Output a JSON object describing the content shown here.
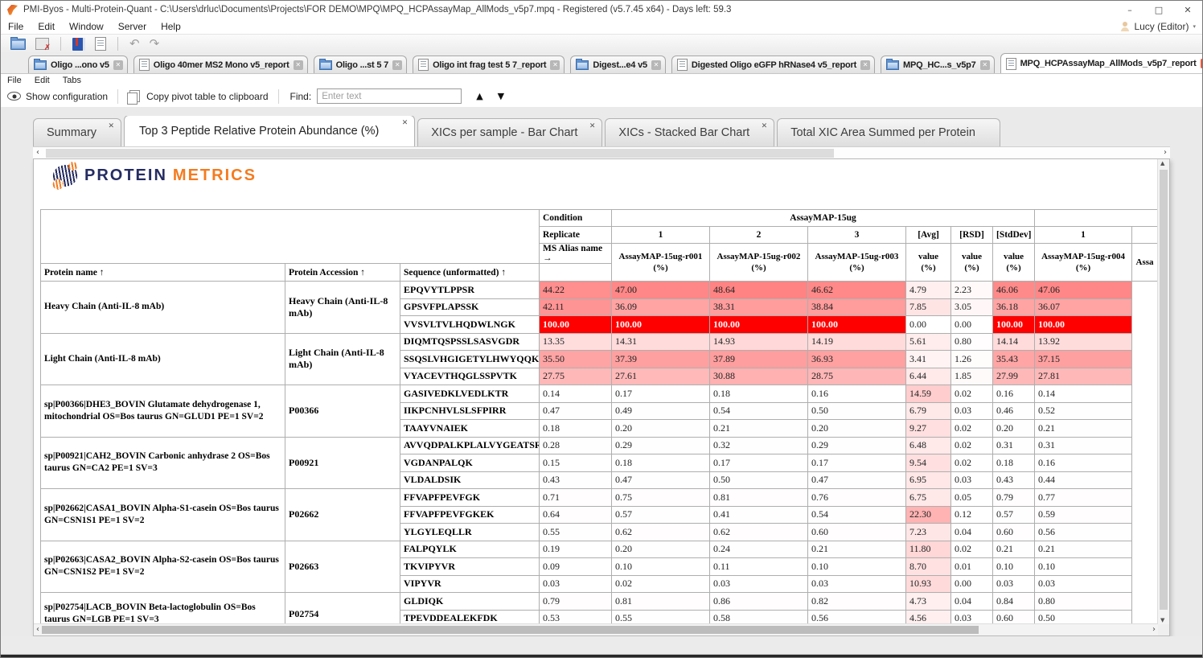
{
  "window": {
    "title": "PMI-Byos - Multi-Protein-Quant - C:\\Users\\drluc\\Documents\\Projects\\FOR DEMO\\MPQ\\MPQ_HCPAssayMap_AllMods_v5p7.mpq - Registered (v5.7.45 x64) - Days left: 59.3",
    "controls": {
      "minimize": "–",
      "maximize": "□",
      "close": "✕"
    }
  },
  "glyphs": {
    "close": "✕",
    "up": "▲",
    "down": "▼",
    "nav_left": "◄",
    "nav_right": "►",
    "chev_left": "‹",
    "chev_right": "›",
    "undo": "↶",
    "redo": "↷",
    "caret": "▾",
    "vs_up": "▲",
    "vs_down": "▼"
  },
  "menu_bar": {
    "items": [
      "File",
      "Edit",
      "Window",
      "Server",
      "Help"
    ],
    "user_label": "Lucy (Editor)"
  },
  "report_menu": {
    "items": [
      "File",
      "Edit",
      "Tabs"
    ]
  },
  "report_toolbar": {
    "show_configuration": "Show configuration",
    "copy_pivot": "Copy pivot table to clipboard",
    "find_label": "Find:",
    "find_placeholder": "Enter text",
    "find_value": ""
  },
  "document_tabs": [
    {
      "label": "Oligo ...ono v5",
      "icon": "folder",
      "active": false
    },
    {
      "label": "Oligo 40mer MS2 Mono v5_report",
      "icon": "report",
      "active": false
    },
    {
      "label": "Oligo ...st 5 7",
      "icon": "folder",
      "active": false
    },
    {
      "label": "Oligo int frag test 5 7_report",
      "icon": "report",
      "active": false
    },
    {
      "label": "Digest...e4 v5",
      "icon": "folder",
      "active": false
    },
    {
      "label": "Digested Oligo eGFP hRNase4 v5_report",
      "icon": "report",
      "active": false
    },
    {
      "label": "MPQ_HC...s_v5p7",
      "icon": "folder",
      "active": false
    },
    {
      "label": "MPQ_HCPAssayMap_AllMods_v5p7_report",
      "icon": "report",
      "active": true
    }
  ],
  "view_tabs": [
    {
      "label": "Summary",
      "closable": true,
      "active": false
    },
    {
      "label": "Top 3 Peptide Relative Protein Abundance (%)",
      "closable": true,
      "active": true
    },
    {
      "label": "XICs per sample - Bar Chart",
      "closable": true,
      "active": false
    },
    {
      "label": "XICs - Stacked Bar Chart",
      "closable": true,
      "active": false
    },
    {
      "label": "Total XIC Area Summed per Protein",
      "closable": false,
      "active": false
    }
  ],
  "logo": {
    "word1": "PROTEIN",
    "word2": "METRICS"
  },
  "colors": {
    "accent_orange": "#f47b20",
    "navy": "#252c62",
    "heat_max": "#ff0000",
    "active_tab_close": "#e8593f"
  },
  "pivot": {
    "header": {
      "condition_label": "Condition",
      "condition_group": "AssayMAP-15ug",
      "replicate_label": "Replicate",
      "replicates": [
        "1",
        "2",
        "3",
        "[Avg]",
        "[RSD]",
        "[StdDev]",
        "1",
        ""
      ],
      "alias_label": "MS Alias name →",
      "aliases": [
        "AssayMAP-15ug-r001",
        "AssayMAP-15ug-r002",
        "AssayMAP-15ug-r003",
        "value",
        "value",
        "value",
        "AssayMAP-15ug-r004",
        "Assa"
      ],
      "alias_unit": "(%)",
      "columns": [
        "Protein name ↑",
        "Protein Accession ↑",
        "Sequence (unformatted) ↑"
      ]
    },
    "groups": [
      {
        "protein": "Heavy Chain (Anti-IL-8 mAb)",
        "accession": "Heavy Chain (Anti-IL-8 mAb)",
        "peptides": [
          {
            "seq": "EPQVYTLPPSR",
            "values": [
              44.22,
              47.0,
              48.64,
              46.62,
              4.79,
              2.23,
              46.06,
              47.06
            ]
          },
          {
            "seq": "GPSVFPLAPSSK",
            "values": [
              42.11,
              36.09,
              38.31,
              38.84,
              7.85,
              3.05,
              36.18,
              36.07
            ]
          },
          {
            "seq": "VVSVLTVLHQDWLNGK",
            "values": [
              100.0,
              100.0,
              100.0,
              100.0,
              0.0,
              0.0,
              100.0,
              100.0
            ]
          }
        ]
      },
      {
        "protein": "Light Chain (Anti-IL-8 mAb)",
        "accession": "Light Chain (Anti-IL-8 mAb)",
        "peptides": [
          {
            "seq": "DIQMTQSPSSLSASVGDR",
            "values": [
              13.35,
              14.31,
              14.93,
              14.19,
              5.61,
              0.8,
              14.14,
              13.92
            ]
          },
          {
            "seq": "SSQSLVHGIGETYLHWYQQKPGK",
            "values": [
              35.5,
              37.39,
              37.89,
              36.93,
              3.41,
              1.26,
              35.43,
              37.15
            ]
          },
          {
            "seq": "VYACEVTHQGLSSPVTK",
            "values": [
              27.75,
              27.61,
              30.88,
              28.75,
              6.44,
              1.85,
              27.99,
              27.81
            ]
          }
        ]
      },
      {
        "protein": "sp|P00366|DHE3_BOVIN Glutamate dehydrogenase 1, mitochondrial OS=Bos taurus GN=GLUD1 PE=1 SV=2",
        "accession": "P00366",
        "peptides": [
          {
            "seq": "GASIVEDKLVEDLKTR",
            "values": [
              0.14,
              0.17,
              0.18,
              0.16,
              14.59,
              0.02,
              0.16,
              0.14
            ]
          },
          {
            "seq": "IIKPCNHVLSLSFPIRR",
            "values": [
              0.47,
              0.49,
              0.54,
              0.5,
              6.79,
              0.03,
              0.46,
              0.52
            ]
          },
          {
            "seq": "TAAYVNAIEK",
            "values": [
              0.18,
              0.2,
              0.21,
              0.2,
              9.27,
              0.02,
              0.2,
              0.21
            ]
          }
        ]
      },
      {
        "protein": "sp|P00921|CAH2_BOVIN Carbonic anhydrase 2 OS=Bos taurus GN=CA2 PE=1 SV=3",
        "accession": "P00921",
        "peptides": [
          {
            "seq": "AVVQDPALKPLALVYGEATSR",
            "values": [
              0.28,
              0.29,
              0.32,
              0.29,
              6.48,
              0.02,
              0.31,
              0.31
            ]
          },
          {
            "seq": "VGDANPALQK",
            "values": [
              0.15,
              0.18,
              0.17,
              0.17,
              9.54,
              0.02,
              0.18,
              0.16
            ]
          },
          {
            "seq": "VLDALDSIK",
            "values": [
              0.43,
              0.47,
              0.5,
              0.47,
              6.95,
              0.03,
              0.43,
              0.44
            ]
          }
        ]
      },
      {
        "protein": "sp|P02662|CASA1_BOVIN Alpha-S1-casein OS=Bos taurus GN=CSN1S1 PE=1 SV=2",
        "accession": "P02662",
        "peptides": [
          {
            "seq": "FFVAPFPEVFGK",
            "values": [
              0.71,
              0.75,
              0.81,
              0.76,
              6.75,
              0.05,
              0.79,
              0.77
            ]
          },
          {
            "seq": "FFVAPFPEVFGKEK",
            "values": [
              0.64,
              0.57,
              0.41,
              0.54,
              22.3,
              0.12,
              0.57,
              0.59
            ]
          },
          {
            "seq": "YLGYLEQLLR",
            "values": [
              0.55,
              0.62,
              0.62,
              0.6,
              7.23,
              0.04,
              0.6,
              0.56
            ]
          }
        ]
      },
      {
        "protein": "sp|P02663|CASA2_BOVIN Alpha-S2-casein OS=Bos taurus GN=CSN1S2 PE=1 SV=2",
        "accession": "P02663",
        "peptides": [
          {
            "seq": "FALPQYLK",
            "values": [
              0.19,
              0.2,
              0.24,
              0.21,
              11.8,
              0.02,
              0.21,
              0.21
            ]
          },
          {
            "seq": "TKVIPYVR",
            "values": [
              0.09,
              0.1,
              0.11,
              0.1,
              8.7,
              0.01,
              0.1,
              0.1
            ]
          },
          {
            "seq": "VIPYVR",
            "values": [
              0.03,
              0.02,
              0.03,
              0.03,
              10.93,
              0.0,
              0.03,
              0.03
            ]
          }
        ]
      },
      {
        "protein": "sp|P02754|LACB_BOVIN Beta-lactoglobulin OS=Bos taurus GN=LGB PE=1 SV=3",
        "accession": "P02754",
        "peptides": [
          {
            "seq": "GLDIQK",
            "values": [
              0.79,
              0.81,
              0.86,
              0.82,
              4.73,
              0.04,
              0.84,
              0.8
            ]
          },
          {
            "seq": "TPEVDDEALEKFDK",
            "values": [
              0.53,
              0.55,
              0.58,
              0.56,
              4.56,
              0.03,
              0.6,
              0.5
            ]
          }
        ]
      }
    ]
  }
}
